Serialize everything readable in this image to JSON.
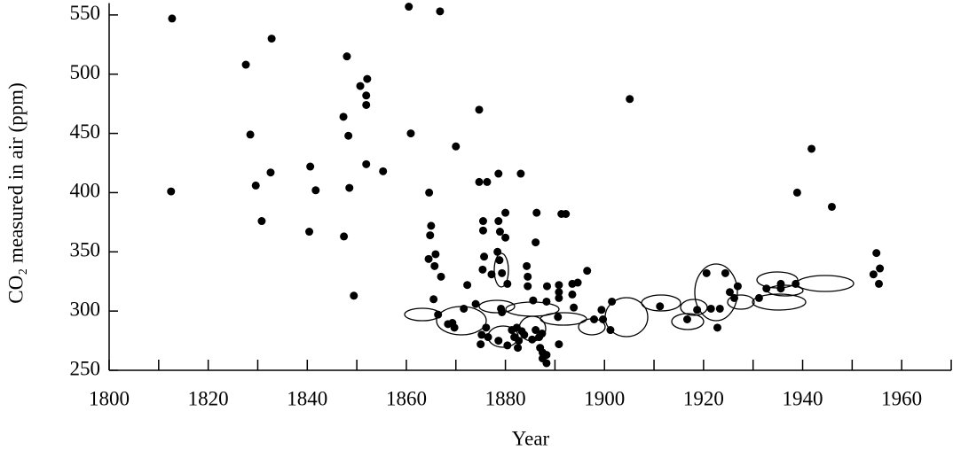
{
  "chart_data": {
    "type": "scatter",
    "xlabel": "Year",
    "ylabel": "CO₂ measured in air (ppm)",
    "color": "#000000",
    "xlim": [
      1800,
      1970
    ],
    "xticks": [
      1800,
      1820,
      1840,
      1860,
      1880,
      1900,
      1920,
      1940,
      1960
    ],
    "xminorticks": [
      1810,
      1830,
      1850,
      1870,
      1890,
      1910,
      1930,
      1950,
      1970
    ],
    "ylim": [
      250,
      560
    ],
    "yticks": [
      250,
      300,
      350,
      400,
      450,
      500,
      550
    ],
    "x": [
      1812.7,
      1812.5,
      1832.8,
      1827.6,
      1828.5,
      1829.6,
      1832.6,
      1830.8,
      1840.6,
      1841.7,
      1840.4,
      1848,
      1847.3,
      1848.3,
      1848.5,
      1847.4,
      1849.4,
      1850.7,
      1852.1,
      1851.9,
      1851.9,
      1851.9,
      1855.3,
      1860.5,
      1860.9,
      1866.8,
      1864.6,
      1865,
      1864.8,
      1865.9,
      1864.5,
      1865.7,
      1867,
      1865.5,
      1866.4,
      1870,
      1874.7,
      1874.7,
      1876.3,
      1878.6,
      1883.1,
      1875.5,
      1875.5,
      1878.6,
      1880,
      1878.9,
      1880,
      1875.7,
      1878.4,
      1875.4,
      1878.8,
      1877.2,
      1879.3,
      1880.4,
      1886.3,
      1886.1,
      1891.3,
      1892.2,
      1884.3,
      1884.5,
      1884.5,
      1872.3,
      1874,
      1871.6,
      1869.3,
      1868.4,
      1869.7,
      1876.1,
      1875.2,
      1876.5,
      1875,
      1878.6,
      1879.3,
      1879.1,
      1880.4,
      1881.3,
      1881.8,
      1882.3,
      1882.7,
      1882.5,
      1883.3,
      1883.8,
      1885.4,
      1886.1,
      1887.4,
      1886.8,
      1887,
      1887.5,
      1888.3,
      1887.5,
      1888.3,
      1890.8,
      1888.4,
      1890.8,
      1890.8,
      1890.8,
      1893.5,
      1894.6,
      1893.5,
      1896.5,
      1893.8,
      1890.6,
      1888.3,
      1885.6,
      1897.9,
      1899.4,
      1899.7,
      1901.5,
      1901.2,
      1905.1,
      1911.2,
      1916.7,
      1918.7,
      1920.6,
      1924.4,
      1921.5,
      1923.3,
      1922.8,
      1925.3,
      1926.2,
      1926.9,
      1931.2,
      1932.7,
      1935.6,
      1935.6,
      1938.6,
      1938.9,
      1941.8,
      1945.9,
      1954.9,
      1954.3,
      1955.6,
      1955.4
    ],
    "values": [
      547,
      401,
      530,
      508,
      449,
      406,
      417,
      376,
      422,
      402,
      367,
      515,
      464,
      448,
      404,
      363,
      313,
      490,
      496,
      482,
      474,
      424,
      418,
      557,
      450,
      553,
      400,
      372,
      364,
      348,
      344,
      338,
      329,
      310,
      297,
      439,
      470,
      409,
      409,
      416,
      416,
      376,
      368,
      376,
      383,
      367,
      362,
      346,
      350,
      335,
      343,
      331,
      332,
      323,
      383,
      358,
      382,
      382,
      338,
      329,
      321,
      322,
      306,
      302,
      290,
      289,
      286,
      286,
      280,
      278,
      272,
      275,
      299,
      302,
      271,
      284,
      278,
      286,
      275,
      269,
      283,
      280,
      276,
      284,
      281,
      278,
      269,
      265,
      263,
      260,
      256,
      272,
      321,
      322,
      316,
      311,
      323,
      324,
      314,
      334,
      303,
      295,
      308,
      309,
      293,
      301,
      293,
      308,
      284,
      479,
      304,
      293,
      301,
      332,
      332,
      302,
      302,
      286,
      316,
      311,
      321,
      311,
      319,
      323,
      319,
      323,
      400,
      437,
      388,
      349,
      331,
      336,
      323
    ]
  }
}
